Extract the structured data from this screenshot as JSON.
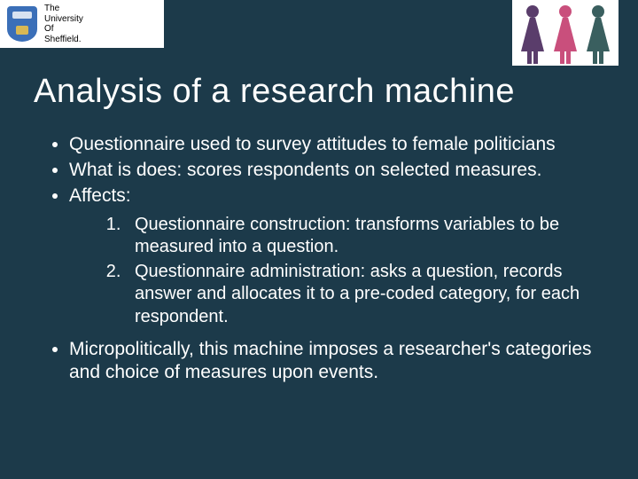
{
  "logo": {
    "line1": "The",
    "line2": "University",
    "line3": "Of",
    "line4": "Sheffield."
  },
  "title": "Analysis of a research machine",
  "bullets": {
    "b1": "Questionnaire used to survey attitudes to female politicians",
    "b2": "What is does:  scores respondents on selected measures.",
    "b3": "Affects:",
    "b4": "Micropolitically, this machine imposes a researcher's categories and choice of measures upon events."
  },
  "numbered": {
    "n1": "Questionnaire construction: transforms variables to be measured into a question.",
    "n2": "Questionnaire administration:  asks a question,  records answer and allocates it to a pre-coded category, for each respondent."
  },
  "colors": {
    "background": "#1c3a4a",
    "text": "#ffffff",
    "logo_bg": "#ffffff",
    "crest": "#3b6fb8"
  }
}
